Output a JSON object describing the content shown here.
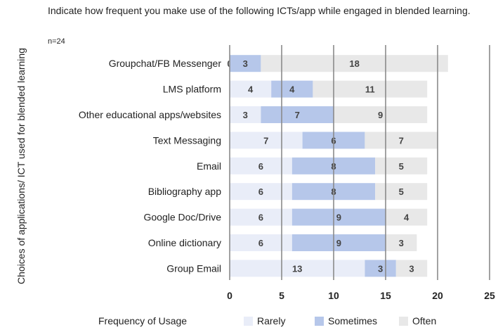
{
  "chart_data": {
    "type": "bar",
    "orientation": "horizontal",
    "stacked": true,
    "title": "Indicate how frequent you make use of the following ICTs/app while engaged in blended learning.",
    "subtitle": "n=24",
    "ylabel": "Choices of applications/ ICT used for  blended learning",
    "xlabel": "",
    "xlim": [
      0,
      25
    ],
    "xticks": [
      "0",
      "5",
      "10",
      "15",
      "20",
      "25"
    ],
    "grid": true,
    "legend_title": "Frequency of Usage",
    "legend_position": "bottom",
    "categories": [
      "Groupchat/FB Messenger",
      "LMS platform",
      "Other educational apps/websites",
      "Text Messaging",
      "Email",
      "Bibliography app",
      "Google Doc/Drive",
      "Online dictionary",
      "Group Email"
    ],
    "series": [
      {
        "name": "Rarely",
        "color": "#e9edf8",
        "values": [
          0,
          4,
          3,
          7,
          6,
          6,
          6,
          6,
          13
        ]
      },
      {
        "name": "Sometimes",
        "color": "#b6c7ea",
        "values": [
          3,
          4,
          7,
          6,
          8,
          8,
          9,
          9,
          3
        ]
      },
      {
        "name": "Often",
        "color": "#e8e8e8",
        "values": [
          18,
          11,
          9,
          7,
          5,
          5,
          4,
          3,
          3
        ]
      }
    ]
  }
}
